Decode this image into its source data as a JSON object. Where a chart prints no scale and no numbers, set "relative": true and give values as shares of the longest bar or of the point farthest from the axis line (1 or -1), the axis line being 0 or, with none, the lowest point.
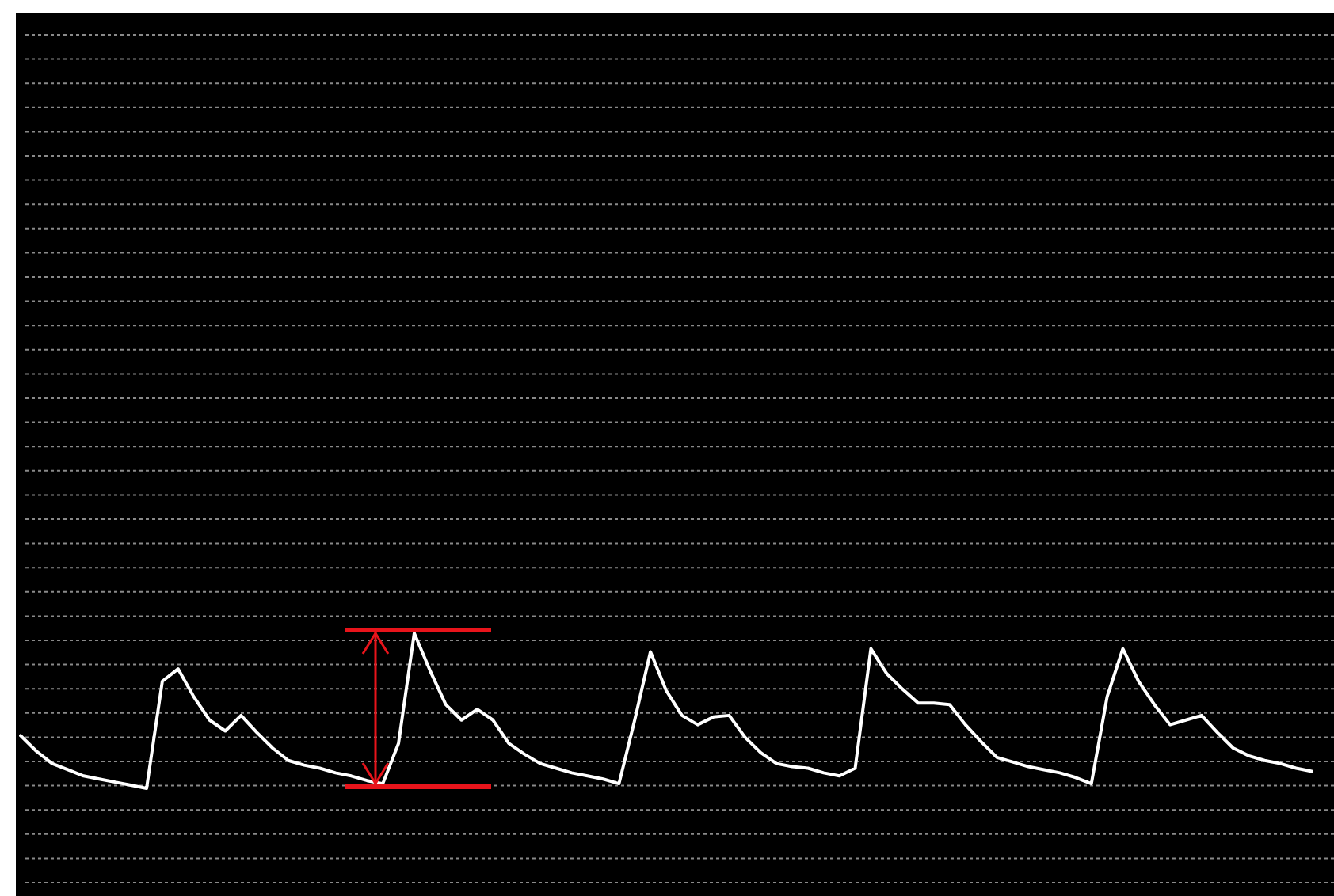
{
  "chart_data": {
    "type": "line",
    "relative": true,
    "grid": "y",
    "marker": "none",
    "line_style": "solid",
    "categories": [
      null,
      null,
      null,
      null,
      null,
      null,
      null,
      null,
      null,
      null,
      null,
      null,
      null,
      null,
      null,
      null,
      null,
      null,
      null,
      null,
      null,
      null,
      null,
      null,
      null,
      null,
      null,
      null,
      null,
      null,
      null,
      null,
      null,
      null,
      null,
      null,
      null,
      null,
      null,
      null,
      null,
      null,
      null,
      null,
      null,
      null,
      null,
      null,
      null,
      null,
      null,
      null,
      null,
      null,
      null,
      null,
      null,
      null,
      null,
      null,
      null,
      null,
      null,
      null,
      null,
      null,
      null,
      null,
      null,
      null,
      null,
      null,
      null,
      null,
      null,
      null,
      null,
      null,
      null,
      null,
      null,
      null,
      null
    ],
    "series": [
      {
        "color": "#ffffff",
        "values": [
          0.34,
          0.24,
          0.16,
          0.12,
          0.08,
          0.06,
          0.04,
          0.02,
          0.0,
          0.69,
          0.77,
          0.59,
          0.44,
          0.37,
          0.47,
          0.36,
          0.26,
          0.18,
          0.15,
          0.13,
          0.1,
          0.08,
          0.05,
          0.03,
          0.29,
          1.0,
          0.76,
          0.54,
          0.44,
          0.51,
          0.44,
          0.29,
          0.22,
          0.16,
          0.13,
          0.1,
          0.08,
          0.06,
          0.03,
          0.44,
          0.88,
          0.63,
          0.47,
          0.41,
          0.46,
          0.47,
          0.33,
          0.23,
          0.16,
          0.14,
          0.13,
          0.1,
          0.08,
          0.13,
          0.9,
          0.74,
          0.64,
          0.55,
          0.55,
          0.54,
          0.41,
          0.3,
          0.2,
          0.17,
          0.14,
          0.12,
          0.1,
          0.07,
          0.03,
          0.59,
          0.9,
          0.69,
          0.54,
          0.41,
          0.44,
          0.47,
          0.36,
          0.26,
          0.21,
          0.18,
          0.16,
          0.13,
          0.11
        ]
      }
    ]
  }
}
